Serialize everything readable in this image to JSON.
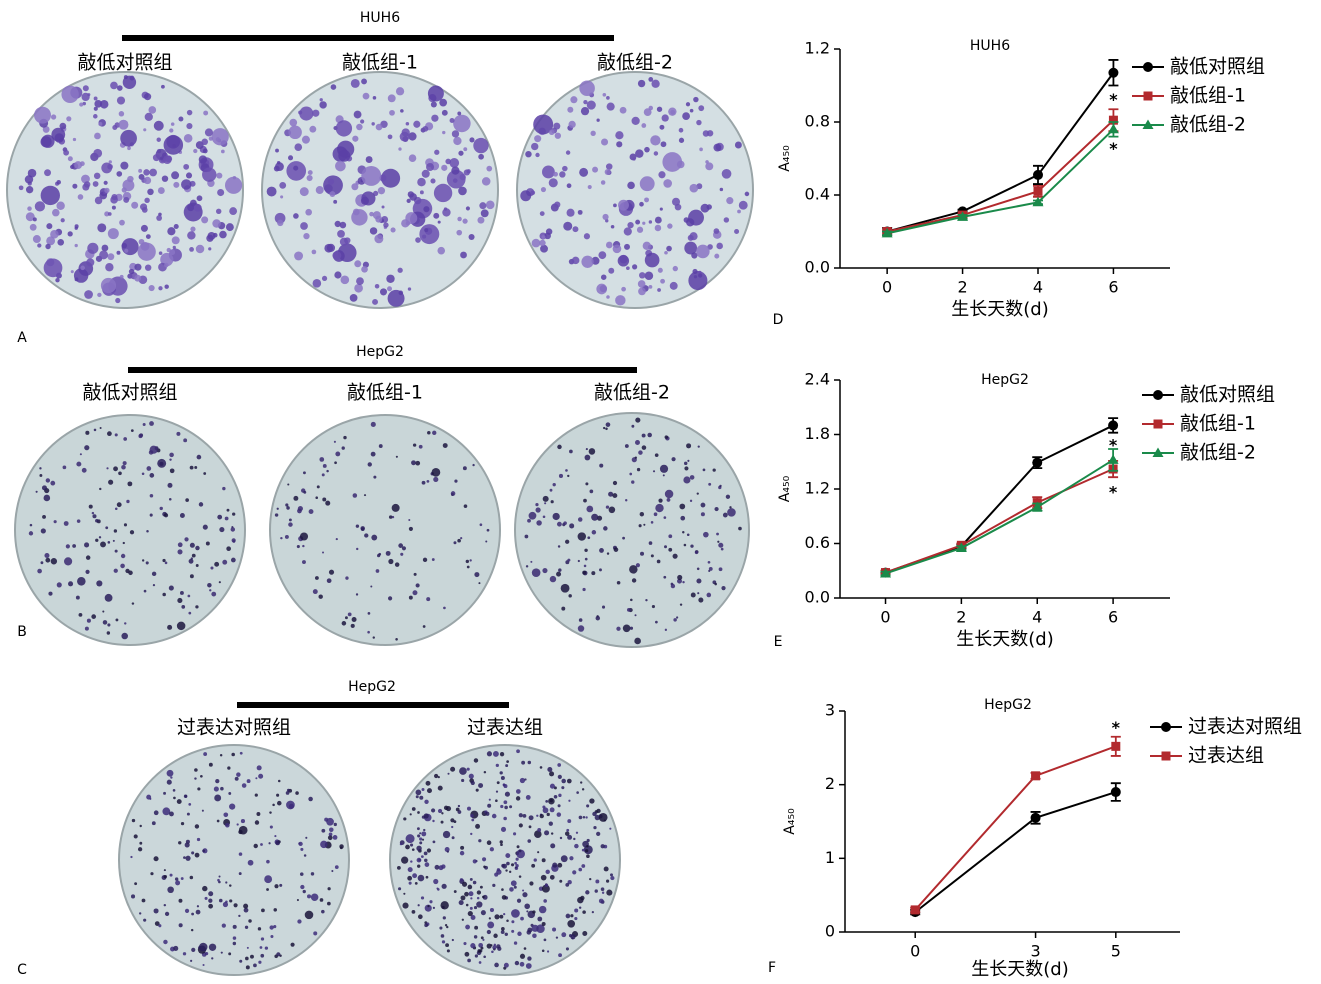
{
  "plates": [
    {
      "panel": "A",
      "title": "HUH6",
      "labels": [
        "敲低对照组",
        "敲低组-1",
        "敲低组-2"
      ]
    },
    {
      "panel": "B",
      "title": "HepG2",
      "labels": [
        "敲低对照组",
        "敲低组-1",
        "敲低组-2"
      ]
    },
    {
      "panel": "C",
      "title": "HepG2",
      "labels": [
        "过表达对照组",
        "过表达组"
      ]
    }
  ],
  "chart_data": [
    {
      "type": "line",
      "panel": "D",
      "title": "HUH6",
      "xlabel": "生长天数(d)",
      "ylabel": "A₄₅₀",
      "x": [
        0,
        2,
        4,
        6
      ],
      "xlim": [
        -1.25,
        7.5
      ],
      "xticks": [
        0,
        2,
        4,
        6
      ],
      "ylim": [
        0,
        1.2
      ],
      "yticks": [
        {
          "value": 0,
          "label": "0.0"
        },
        0.4,
        0.8,
        1.2
      ],
      "series": [
        {
          "name": "敲低对照组",
          "color": "#000000",
          "marker": "circle",
          "values": [
            0.2,
            0.31,
            0.51,
            1.07
          ],
          "errors": [
            0.02,
            0.01,
            0.05,
            0.07
          ]
        },
        {
          "name": "敲低组-1",
          "color": "#b22a2e",
          "marker": "square",
          "values": [
            0.2,
            0.29,
            0.42,
            0.81
          ],
          "errors": [
            0.01,
            0.01,
            0.03,
            0.06
          ]
        },
        {
          "name": "敲低组-2",
          "color": "#1a8a4a",
          "marker": "triangle",
          "values": [
            0.19,
            0.28,
            0.36,
            0.76
          ],
          "errors": [
            0.01,
            0.01,
            0.01,
            0.04
          ]
        }
      ],
      "annotations": [
        {
          "text": "*",
          "x": 6,
          "y": 0.94
        },
        {
          "text": "*",
          "x": 6,
          "y": 0.67
        }
      ]
    },
    {
      "type": "line",
      "panel": "E",
      "title": "HepG2",
      "xlabel": "生长天数(d)",
      "ylabel": "A₄₅₀",
      "x": [
        0,
        2,
        4,
        6
      ],
      "xlim": [
        -1.2,
        7.5
      ],
      "xticks": [
        0,
        2,
        4,
        6
      ],
      "ylim": [
        0,
        2.4
      ],
      "yticks": [
        {
          "value": 0,
          "label": "0.0"
        },
        0.6,
        1.2,
        1.8,
        2.4
      ],
      "series": [
        {
          "name": "敲低对照组",
          "color": "#000000",
          "marker": "circle",
          "values": [
            0.28,
            0.57,
            1.49,
            1.9
          ],
          "errors": [
            0.02,
            0.02,
            0.06,
            0.08
          ]
        },
        {
          "name": "敲低组-1",
          "color": "#b22a2e",
          "marker": "square",
          "values": [
            0.28,
            0.58,
            1.05,
            1.42
          ],
          "errors": [
            0.02,
            0.02,
            0.06,
            0.09
          ]
        },
        {
          "name": "敲低组-2",
          "color": "#1a8a4a",
          "marker": "triangle",
          "values": [
            0.27,
            0.55,
            1.0,
            1.52
          ],
          "errors": [
            0.02,
            0.02,
            0.04,
            0.12
          ]
        }
      ],
      "annotations": [
        {
          "text": "*",
          "x": 6,
          "y": 1.72
        },
        {
          "text": "*",
          "x": 6,
          "y": 1.2
        }
      ]
    },
    {
      "type": "line",
      "panel": "F",
      "title": "HepG2",
      "xlabel": "生长天数(d)",
      "ylabel": "A₄₅₀",
      "x": [
        0,
        3,
        5
      ],
      "xlim": [
        -1.75,
        6.6
      ],
      "xticks": [
        0,
        3,
        5
      ],
      "ylim": [
        0,
        3
      ],
      "yticks": [
        0,
        1,
        2,
        3
      ],
      "series": [
        {
          "name": "过表达对照组",
          "color": "#000000",
          "marker": "circle",
          "values": [
            0.27,
            1.55,
            1.9
          ],
          "errors": [
            0.03,
            0.08,
            0.12
          ]
        },
        {
          "name": "过表达组",
          "color": "#b22a2e",
          "marker": "square",
          "values": [
            0.3,
            2.12,
            2.52
          ],
          "errors": [
            0.03,
            0.04,
            0.13
          ]
        }
      ],
      "annotations": [
        {
          "text": "*",
          "x": 5,
          "y": 2.82
        }
      ]
    }
  ]
}
